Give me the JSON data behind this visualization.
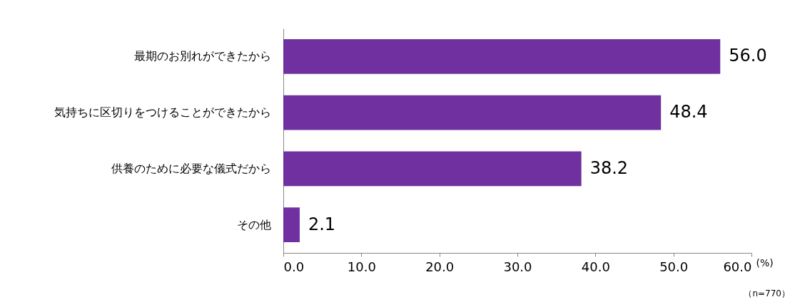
{
  "chart_data": {
    "type": "bar",
    "orientation": "horizontal",
    "categories": [
      "最期のお別れができたから",
      "気持ちに区切りをつけることができたから",
      "供養のために必要な儀式だから",
      "その他"
    ],
    "values": [
      56.0,
      48.4,
      38.2,
      2.1
    ],
    "color": "#7030a0",
    "xlim": [
      0,
      60
    ],
    "xticks": [
      {
        "value": 0,
        "label": "0.0"
      },
      {
        "value": 10,
        "label": "10.0"
      },
      {
        "value": 20,
        "label": "20.0"
      },
      {
        "value": 30,
        "label": "30.0"
      },
      {
        "value": 40,
        "label": "40.0"
      },
      {
        "value": 50,
        "label": "50.0"
      },
      {
        "value": 60,
        "label": "60.0"
      }
    ],
    "xlabel": "(%)",
    "annotations": [
      "（n=770）"
    ],
    "value_labels": [
      "56.0",
      "48.4",
      "38.2",
      "2.1"
    ],
    "grid": false
  }
}
